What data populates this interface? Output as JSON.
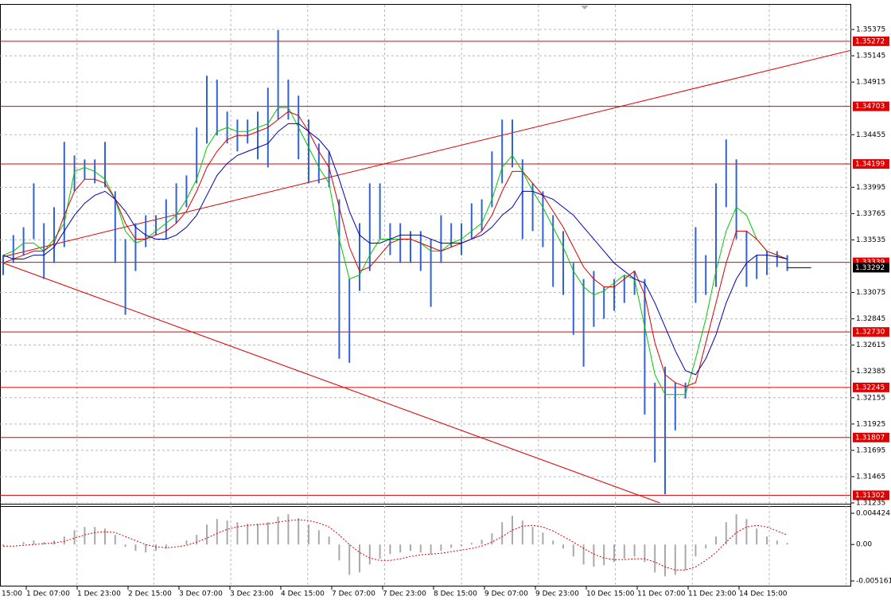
{
  "chart_data": [
    {
      "type": "range-bar",
      "categories": [
        "15:00",
        null,
        null,
        null,
        null,
        "1 Dec 07:00",
        null,
        null,
        null,
        null,
        "1 Dec 23:00",
        null,
        null,
        null,
        null,
        "2 Dec 15:00",
        null,
        null,
        null,
        null,
        "3 Dec 07:00",
        null,
        null,
        null,
        null,
        "3 Dec 23:00",
        null,
        null,
        null,
        null,
        "4 Dec 15:00",
        null,
        null,
        null,
        null,
        "7 Dec 07:00",
        null,
        null,
        null,
        null,
        "7 Dec 23:00",
        null,
        null,
        null,
        null,
        "8 Dec 15:00",
        null,
        null,
        null,
        null,
        "9 Dec 07:00",
        null,
        null,
        null,
        null,
        "9 Dec 23:00",
        null,
        null,
        null,
        null,
        "10 Dec 15:00",
        null,
        null,
        null,
        null,
        "11 Dec 07:00",
        null,
        null,
        null,
        null,
        "11 Dec 23:00",
        null,
        null,
        null,
        null,
        "14 Dec 15:00",
        null,
        null
      ],
      "color": "#2f63d6",
      "high": [
        1.33402,
        1.33577,
        1.33646,
        1.3403,
        1.33681,
        1.33821,
        1.34392,
        1.34274,
        1.34239,
        1.34239,
        1.34392,
        1.3396,
        1.33542,
        1.33681,
        1.33751,
        1.33751,
        1.3389,
        1.3403,
        1.34099,
        1.34518,
        1.34971,
        1.34936,
        1.34657,
        1.34587,
        1.34587,
        1.34657,
        1.34866,
        1.35368,
        1.34936,
        1.34796,
        1.34587,
        1.34378,
        1.34309,
        1.3389,
        1.33193,
        1.33681,
        1.3403,
        1.3403,
        1.33681,
        1.33681,
        1.33612,
        1.33612,
        1.33542,
        1.33751,
        1.33681,
        1.33681,
        1.33855,
        1.3389,
        1.34309,
        1.34587,
        1.34587,
        1.34239,
        1.3403,
        1.3396,
        1.33751,
        1.33612,
        1.33333,
        1.33193,
        1.33263,
        1.33124,
        1.33193,
        1.33228,
        1.33263,
        1.33193,
        1.32287,
        1.32427,
        1.32287,
        1.32287,
        1.33646,
        1.33402,
        1.3403,
        1.34413,
        1.34239,
        1.33612,
        1.33402,
        1.33437,
        1.33437,
        1.33402
      ],
      "low": [
        1.33228,
        1.33333,
        1.33402,
        1.33542,
        1.33193,
        1.33333,
        1.33472,
        1.3396,
        1.34065,
        1.3403,
        1.33995,
        1.33333,
        1.3288,
        1.33263,
        1.33472,
        1.33577,
        1.33542,
        1.33681,
        1.33821,
        1.3403,
        1.34378,
        1.34448,
        1.34378,
        1.34309,
        1.34378,
        1.34239,
        1.34169,
        1.34587,
        1.34587,
        1.34239,
        1.3403,
        1.3403,
        1.33995,
        1.32496,
        1.32461,
        1.33089,
        1.33263,
        1.33542,
        1.33402,
        1.33333,
        1.33333,
        1.33263,
        1.32949,
        1.33333,
        1.33472,
        1.33402,
        1.33542,
        1.33612,
        1.33821,
        1.3403,
        1.34169,
        1.33542,
        1.33612,
        1.33472,
        1.33124,
        1.33054,
        1.32705,
        1.32427,
        1.32775,
        1.32845,
        1.32915,
        1.32984,
        1.33054,
        1.32008,
        1.3159,
        1.31311,
        1.31869,
        1.32148,
        1.32984,
        1.33054,
        1.33124,
        1.33821,
        1.33542,
        1.33124,
        1.33193,
        1.33228,
        1.33298,
        1.33263
      ],
      "lines": [
        {
          "color": "#00c800",
          "values": [
            1.33402,
            1.33437,
            1.33507,
            1.33507,
            1.33437,
            1.33542,
            1.33681,
            1.34134,
            1.34169,
            1.34134,
            1.34065,
            1.3389,
            1.33612,
            1.33507,
            1.33542,
            1.33612,
            1.33681,
            1.33751,
            1.3389,
            1.34065,
            1.34343,
            1.34483,
            1.34518,
            1.34483,
            1.34483,
            1.34518,
            1.34552,
            1.34692,
            1.34692,
            1.34518,
            1.34343,
            1.34169,
            1.3403,
            1.33542,
            1.33193,
            1.33228,
            1.33402,
            1.33542,
            1.33542,
            1.33542,
            1.33542,
            1.33507,
            1.33437,
            1.33437,
            1.33507,
            1.33542,
            1.33612,
            1.33681,
            1.3389,
            1.34169,
            1.34274,
            1.34134,
            1.3396,
            1.33821,
            1.33646,
            1.33472,
            1.33263,
            1.33124,
            1.33054,
            1.33089,
            1.33159,
            1.33228,
            1.33193,
            1.32775,
            1.32357,
            1.32183,
            1.32183,
            1.32183,
            1.32496,
            1.32845,
            1.33263,
            1.33612,
            1.33821,
            1.33751,
            1.33542,
            1.33437,
            1.33402,
            1.33368
          ]
        },
        {
          "color": "#d80000",
          "values": [
            1.33333,
            1.33368,
            1.33402,
            1.33437,
            1.33437,
            1.33507,
            1.33751,
            1.3396,
            1.34065,
            1.34065,
            1.3403,
            1.3389,
            1.33681,
            1.33542,
            1.33542,
            1.33577,
            1.33612,
            1.33681,
            1.33786,
            1.3396,
            1.34169,
            1.34309,
            1.34413,
            1.34448,
            1.34448,
            1.34483,
            1.34518,
            1.34587,
            1.34657,
            1.34622,
            1.34483,
            1.34309,
            1.34169,
            1.33821,
            1.33472,
            1.33263,
            1.33298,
            1.33402,
            1.33507,
            1.33542,
            1.33542,
            1.33507,
            1.33472,
            1.33437,
            1.33472,
            1.33507,
            1.33542,
            1.33612,
            1.33751,
            1.3396,
            1.34134,
            1.34134,
            1.3403,
            1.33925,
            1.33786,
            1.33646,
            1.33472,
            1.33298,
            1.33193,
            1.33124,
            1.33124,
            1.33193,
            1.33263,
            1.33054,
            1.32636,
            1.32357,
            1.32287,
            1.32252,
            1.32287,
            1.32636,
            1.32984,
            1.33333,
            1.33612,
            1.33612,
            1.33542,
            1.33437,
            1.33402,
            1.33368
          ]
        },
        {
          "color": "#0000b4",
          "values": [
            1.33402,
            1.33368,
            1.33368,
            1.33402,
            1.33402,
            1.33472,
            1.33612,
            1.33751,
            1.33855,
            1.33925,
            1.3396,
            1.3389,
            1.33786,
            1.33646,
            1.33577,
            1.33542,
            1.33542,
            1.33577,
            1.33646,
            1.33751,
            1.33925,
            1.34099,
            1.34204,
            1.34274,
            1.34309,
            1.34343,
            1.34378,
            1.34483,
            1.34552,
            1.34552,
            1.34483,
            1.34413,
            1.34309,
            1.34065,
            1.33786,
            1.33577,
            1.33507,
            1.33507,
            1.33542,
            1.33577,
            1.33577,
            1.33577,
            1.33542,
            1.33507,
            1.33507,
            1.33507,
            1.33542,
            1.33577,
            1.33646,
            1.33751,
            1.33821,
            1.3396,
            1.3396,
            1.33925,
            1.3389,
            1.33821,
            1.33751,
            1.33646,
            1.33542,
            1.33437,
            1.33333,
            1.33263,
            1.33193,
            1.33159,
            1.32984,
            1.32775,
            1.32566,
            1.32392,
            1.32357,
            1.32496,
            1.32705,
            1.32984,
            1.33193,
            1.33333,
            1.33402,
            1.33402,
            1.33388,
            1.33368
          ]
        }
      ],
      "level_color": "#e00000",
      "levels": [
        {
          "value": 1.35272,
          "label": "1.35272"
        },
        {
          "value": 1.34703,
          "label": "1.34703"
        },
        {
          "value": 1.34199,
          "label": "1.34199"
        },
        {
          "value": 1.33339,
          "label": "1.33339"
        },
        {
          "value": 1.3273,
          "label": "1.32730"
        },
        {
          "value": 1.32245,
          "label": "1.32245"
        },
        {
          "value": 1.31807,
          "label": "1.31807"
        },
        {
          "value": 1.31302,
          "label": "1.31302"
        }
      ],
      "current_price": {
        "value": 1.33292,
        "label": "1.33292"
      },
      "trendlines": [
        {
          "start": [
            0,
            1.33388
          ],
          "end": [
            83.3,
            1.35194
          ]
        },
        {
          "start": [
            0,
            1.33333
          ],
          "end": [
            64.5,
            1.31235
          ]
        }
      ],
      "ylim": [
        1.31235,
        1.35598
      ],
      "yticks": [
        1.35375,
        1.35145,
        1.34915,
        1.34455,
        1.33995,
        1.33765,
        1.33535,
        1.33075,
        1.32845,
        1.32615,
        1.32385,
        1.32155,
        1.31925,
        1.31695,
        1.31465,
        1.31235
      ],
      "grid": true
    },
    {
      "type": "macd",
      "color": "#a9a9a9",
      "values": [
        -0.000226,
        0,
        0.000339,
        0.000565,
        0.000339,
        0.000565,
        0.00113,
        0.002034,
        0.002486,
        0.002486,
        0.00226,
        0.001356,
        -0.000339,
        -0.000904,
        -0.00113,
        -0.000904,
        -0.000565,
        0,
        0.000565,
        0.001356,
        0.002825,
        0.003616,
        0.00339,
        0.003164,
        0.002938,
        0.002938,
        0.003164,
        0.003955,
        0.004294,
        0.003729,
        0.002825,
        0.002034,
        0.00113,
        -0.00226,
        -0.004294,
        -0.003955,
        -0.002825,
        -0.002034,
        -0.001356,
        -0.00113,
        -0.000904,
        -0.00113,
        -0.001356,
        -0.000904,
        -0.000452,
        -0.000226,
        0.000226,
        0.000678,
        0.001582,
        0.003164,
        0.004068,
        0.00339,
        0.002486,
        0.001695,
        0.000565,
        -0.000565,
        -0.001695,
        -0.002825,
        -0.003164,
        -0.002938,
        -0.002486,
        -0.002034,
        -0.001695,
        -0.002486,
        -0.003955,
        -0.00452,
        -0.004294,
        -0.003616,
        -0.001695,
        -0.000565,
        0.00113,
        0.003164,
        0.004294,
        0.003616,
        0.00226,
        0.00113,
        0.000565,
        0.000226
      ],
      "signal_color": "#e00000",
      "signal": [
        -0.000226,
        -0.000226,
        -0.000113,
        0,
        0.000113,
        0.000226,
        0.000452,
        0.000904,
        0.001356,
        0.001695,
        0.001808,
        0.001695,
        0.00113,
        0.000565,
        0,
        -0.000339,
        -0.000452,
        -0.000339,
        -0.000113,
        0.000339,
        0.000904,
        0.001582,
        0.002147,
        0.002486,
        0.002712,
        0.002825,
        0.002938,
        0.003164,
        0.00339,
        0.003503,
        0.00339,
        0.003051,
        0.002486,
        0.001356,
        0,
        -0.00113,
        -0.001921,
        -0.00226,
        -0.00226,
        -0.002034,
        -0.001695,
        -0.001469,
        -0.001356,
        -0.001243,
        -0.001017,
        -0.000791,
        -0.000565,
        -0.000226,
        0.000339,
        0.00113,
        0.002034,
        0.002599,
        0.002712,
        0.002486,
        0.001921,
        0.00113,
        0.000339,
        -0.000565,
        -0.001356,
        -0.001921,
        -0.002147,
        -0.002147,
        -0.002034,
        -0.002034,
        -0.002486,
        -0.003164,
        -0.003616,
        -0.003616,
        -0.003164,
        -0.00226,
        -0.00113,
        0.000339,
        0.001695,
        0.002486,
        0.002712,
        0.002486,
        0.001921,
        0.001356
      ],
      "ylim": [
        -0.00595,
        0.00544
      ],
      "yticks": [
        0.004424,
        {
          "value": 0,
          "label": "0.00"
        },
        -0.005161
      ]
    }
  ]
}
